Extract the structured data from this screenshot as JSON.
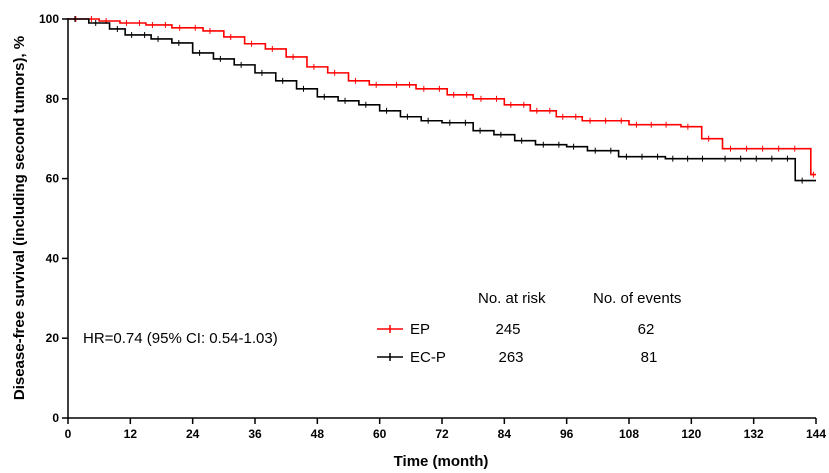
{
  "chart_data": {
    "type": "line",
    "step": true,
    "xlabel": "Time (month)",
    "ylabel": "Disease-free survival (including second tumors), %",
    "xlim": [
      0,
      144
    ],
    "ylim": [
      0,
      100
    ],
    "x_ticks": [
      0,
      12,
      24,
      36,
      48,
      60,
      72,
      84,
      96,
      108,
      120,
      132,
      144
    ],
    "y_ticks": [
      0,
      20,
      40,
      60,
      80,
      100
    ],
    "x_tick_labels": [
      "0",
      "12",
      "24",
      "36",
      "48",
      "60",
      "72",
      "84",
      "96",
      "108",
      "120",
      "132",
      "144"
    ],
    "y_tick_labels": [
      "0",
      "20",
      "40",
      "60",
      "80",
      "100"
    ],
    "grid": false,
    "annotation": "HR=0.74 (95% CI: 0.54-1.03)",
    "table_headers": {
      "at_risk": "No. at risk",
      "events": "No. of events"
    },
    "series": [
      {
        "name": "EP",
        "color": "#ff0000",
        "at_risk": "245",
        "events": "62",
        "x": [
          0,
          6,
          10,
          15,
          20,
          26,
          30,
          34,
          38,
          42,
          46,
          50,
          54,
          58,
          62,
          67,
          73,
          78,
          84,
          89,
          94,
          99,
          108,
          118,
          122,
          126,
          143
        ],
        "y": [
          100,
          99.5,
          99,
          98.5,
          97.8,
          97,
          95.5,
          93.8,
          92.5,
          90.5,
          88,
          86.5,
          84.5,
          83.5,
          83.5,
          82.5,
          81,
          80,
          78.5,
          77,
          75.5,
          74.5,
          73.5,
          73,
          70,
          67.5,
          61
        ]
      },
      {
        "name": "EC-P",
        "color": "#000000",
        "at_risk": "263",
        "events": "81",
        "x": [
          0,
          4,
          8,
          11,
          16,
          20,
          24,
          28,
          32,
          36,
          40,
          44,
          48,
          52,
          56,
          60,
          64,
          68,
          72,
          78,
          82,
          86,
          90,
          96,
          100,
          106,
          115,
          125,
          140
        ],
        "y": [
          100,
          99,
          97.5,
          96,
          95,
          94,
          91.5,
          90,
          88.5,
          86.5,
          84.5,
          82.5,
          80.5,
          79.5,
          78.5,
          77,
          75.5,
          74.5,
          74,
          72,
          71,
          69.5,
          68.5,
          68,
          67,
          65.5,
          65,
          65,
          59.5
        ]
      }
    ]
  }
}
